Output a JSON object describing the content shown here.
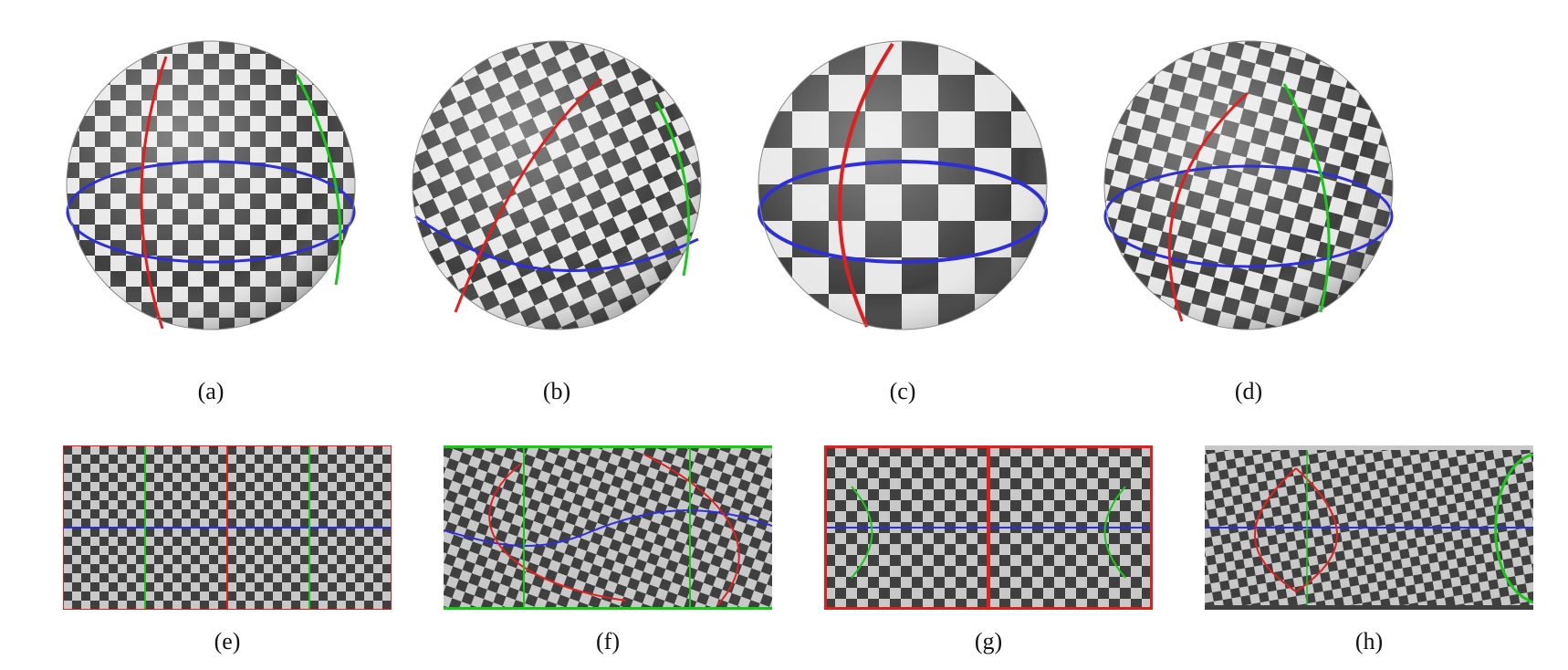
{
  "figure": {
    "sphere_captions": [
      "(a)",
      "(b)",
      "(c)",
      "(d)"
    ],
    "map_captions": [
      "(e)",
      "(f)",
      "(g)",
      "(h)"
    ]
  },
  "colors": {
    "dark_square": "#3f3f3f",
    "light_square": "#e8e8e8",
    "equator_line": "#2f2fd8",
    "meridian_red": "#e02020",
    "meridian_green": "#19c819",
    "map_background": "#c8c8c8"
  }
}
